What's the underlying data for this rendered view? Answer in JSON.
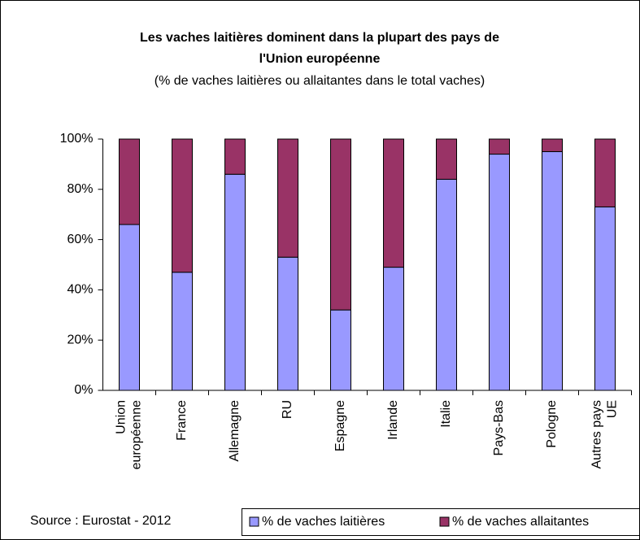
{
  "chart_data": {
    "type": "stacked_bar",
    "title": [
      "Les vaches laitières dominent dans la plupart des pays de",
      "l'Union européenne"
    ],
    "subtitle": "(% de vaches laitières ou allaitantes dans le total vaches)",
    "source": "Source : Eurostat - 2012",
    "categories": [
      "Union\neuropéenne",
      "France",
      "Allemagne",
      "RU",
      "Espagne",
      "Irlande",
      "Italie",
      "Pays-Bas",
      "Pologne",
      "Autres pays\nUE"
    ],
    "series": [
      {
        "name": "% de vaches laitières",
        "color": "#9999ff",
        "values": [
          66,
          47,
          86,
          53,
          32,
          49,
          84,
          94,
          95,
          73
        ]
      },
      {
        "name": "% de vaches allaitantes",
        "color": "#993366",
        "values": [
          34,
          53,
          14,
          47,
          68,
          51,
          16,
          6,
          5,
          27
        ]
      }
    ],
    "ylim": [
      0,
      100
    ],
    "yticks": [
      {
        "value": 0,
        "label": "0%"
      },
      {
        "value": 20,
        "label": "20%"
      },
      {
        "value": 40,
        "label": "40%"
      },
      {
        "value": 60,
        "label": "60%"
      },
      {
        "value": 80,
        "label": "80%"
      },
      {
        "value": 100,
        "label": "100%"
      }
    ],
    "legend": "bottom"
  }
}
